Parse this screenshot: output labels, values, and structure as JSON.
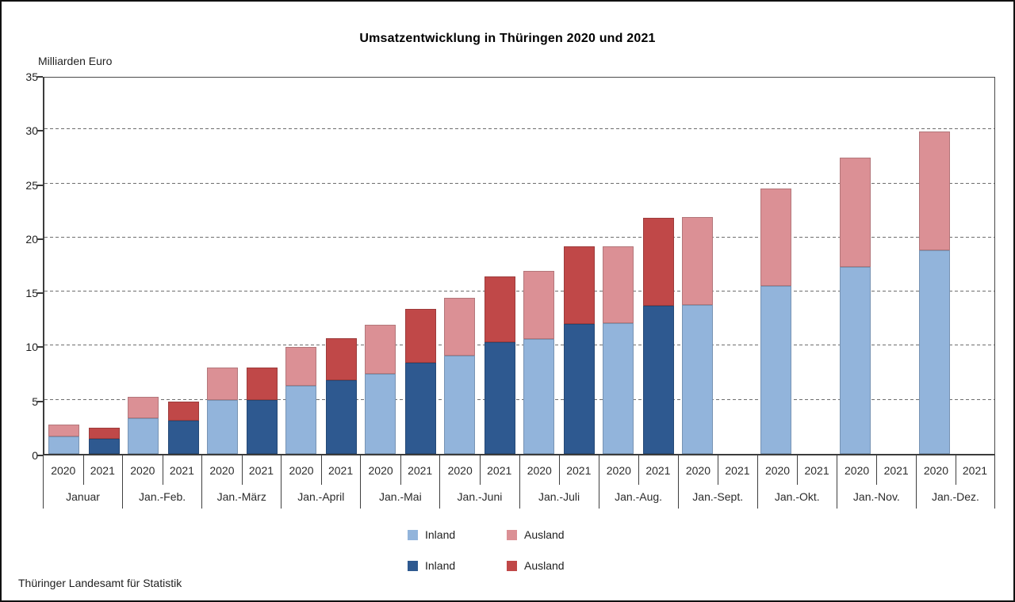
{
  "title": "Umsatzentwicklung in Thüringen 2020 und 2021",
  "unit_label": "Milliarden Euro",
  "source": "Thüringer Landesamt für Statistik",
  "legend": [
    {
      "id": "inland-2020",
      "label": "Inland",
      "color": "#92b4db"
    },
    {
      "id": "ausland-2020",
      "label": "Ausland",
      "color": "#db9095"
    },
    {
      "id": "inland-2021",
      "label": "Inland",
      "color": "#2e5990"
    },
    {
      "id": "ausland-2021",
      "label": "Ausland",
      "color": "#c04848"
    }
  ],
  "chart_data": {
    "type": "bar",
    "stacked": true,
    "title": "Umsatzentwicklung in Thüringen 2020 und 2021",
    "ylabel": "Milliarden Euro",
    "ylim": [
      0,
      35
    ],
    "yticks": [
      0,
      5,
      10,
      15,
      20,
      25,
      30,
      35
    ],
    "grid": "horizontal-dashed",
    "legend_position": "bottom",
    "bar_years": [
      "2020",
      "2021"
    ],
    "categories": [
      "Januar",
      "Jan.-Feb.",
      "Jan.-März",
      "Jan.-April",
      "Jan.-Mai",
      "Jan.-Juni",
      "Jan.-Juli",
      "Jan.-Aug.",
      "Jan.-Sept.",
      "Jan.-Okt.",
      "Jan.-Nov.",
      "Jan.-Dez."
    ],
    "series": [
      {
        "name": "Inland 2020",
        "year": "2020",
        "component": "Inland",
        "color": "#92b4db",
        "values": [
          1.6,
          3.3,
          5.0,
          6.3,
          7.4,
          9.1,
          10.6,
          12.1,
          13.8,
          15.5,
          17.3,
          18.8
        ]
      },
      {
        "name": "Ausland 2020",
        "year": "2020",
        "component": "Ausland",
        "color": "#db9095",
        "values": [
          1.1,
          2.0,
          3.0,
          3.6,
          4.5,
          5.3,
          6.3,
          7.1,
          8.1,
          9.0,
          10.1,
          11.0
        ]
      },
      {
        "name": "Inland 2021",
        "year": "2021",
        "component": "Inland",
        "color": "#2e5990",
        "values": [
          1.4,
          3.1,
          5.0,
          6.8,
          8.4,
          10.3,
          12.0,
          13.7,
          null,
          null,
          null,
          null
        ]
      },
      {
        "name": "Ausland 2021",
        "year": "2021",
        "component": "Ausland",
        "color": "#c04848",
        "values": [
          1.0,
          1.7,
          3.0,
          3.9,
          5.0,
          6.1,
          7.2,
          8.1,
          null,
          null,
          null,
          null
        ]
      }
    ],
    "totals_2020": [
      2.7,
      5.3,
      8.0,
      9.9,
      11.9,
      14.4,
      16.9,
      19.2,
      21.9,
      24.5,
      27.4,
      29.8
    ],
    "totals_2021": [
      2.4,
      4.8,
      8.0,
      10.7,
      13.4,
      16.4,
      19.2,
      21.8,
      null,
      null,
      null,
      null
    ]
  }
}
